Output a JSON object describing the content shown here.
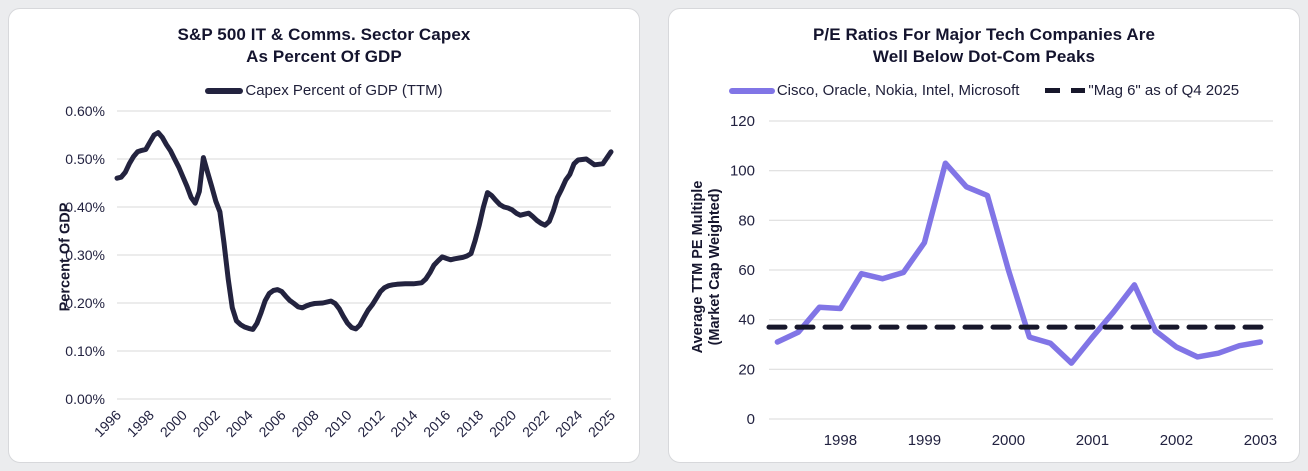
{
  "page": {
    "background": "#ebecee",
    "card_background": "#ffffff",
    "gridline_color": "#d9d9d9"
  },
  "chart_data": [
    {
      "type": "line",
      "title_line1": "S&P 500 IT & Comms. Sector Capex",
      "title_line2": "As Percent Of GDP",
      "ylabel": "Percent Of GDP",
      "legend_position": "top",
      "grid": "horizontal",
      "xlim": [
        1996,
        2025
      ],
      "ylim": [
        0,
        0.6
      ],
      "xtick_labels": [
        "1996",
        "1998",
        "2000",
        "2002",
        "2004",
        "2006",
        "2008",
        "2010",
        "2012",
        "2014",
        "2016",
        "2018",
        "2020",
        "2022",
        "2024",
        "2025"
      ],
      "xtick_years": [
        1996,
        1998,
        2000,
        2002,
        2004,
        2006,
        2008,
        2010,
        2012,
        2014,
        2016,
        2018,
        2020,
        2022,
        2024,
        2025
      ],
      "ytick_labels": [
        "0.00%",
        "0.10%",
        "0.20%",
        "0.30%",
        "0.40%",
        "0.50%",
        "0.60%"
      ],
      "ytick_values": [
        0,
        0.1,
        0.2,
        0.3,
        0.4,
        0.5,
        0.6
      ],
      "series": [
        {
          "name": "Capex Percent of GDP (TTM)",
          "color": "#23233f",
          "dash": false,
          "points": [
            [
              1996.0,
              0.46
            ],
            [
              1996.25,
              0.462
            ],
            [
              1996.5,
              0.472
            ],
            [
              1996.75,
              0.49
            ],
            [
              1997.0,
              0.505
            ],
            [
              1997.25,
              0.515
            ],
            [
              1997.5,
              0.518
            ],
            [
              1997.75,
              0.52
            ],
            [
              1998.0,
              0.535
            ],
            [
              1998.25,
              0.55
            ],
            [
              1998.5,
              0.555
            ],
            [
              1998.75,
              0.545
            ],
            [
              1999.0,
              0.53
            ],
            [
              1999.25,
              0.517
            ],
            [
              1999.5,
              0.5
            ],
            [
              1999.75,
              0.483
            ],
            [
              2000.0,
              0.463
            ],
            [
              2000.25,
              0.443
            ],
            [
              2000.5,
              0.42
            ],
            [
              2000.75,
              0.408
            ],
            [
              2001.0,
              0.432
            ],
            [
              2001.25,
              0.503
            ],
            [
              2001.5,
              0.472
            ],
            [
              2001.75,
              0.443
            ],
            [
              2002.0,
              0.412
            ],
            [
              2002.25,
              0.39
            ],
            [
              2002.5,
              0.325
            ],
            [
              2002.75,
              0.25
            ],
            [
              2003.0,
              0.19
            ],
            [
              2003.25,
              0.163
            ],
            [
              2003.5,
              0.155
            ],
            [
              2003.75,
              0.15
            ],
            [
              2004.0,
              0.147
            ],
            [
              2004.25,
              0.145
            ],
            [
              2004.5,
              0.158
            ],
            [
              2004.75,
              0.18
            ],
            [
              2005.0,
              0.205
            ],
            [
              2005.25,
              0.22
            ],
            [
              2005.5,
              0.226
            ],
            [
              2005.75,
              0.228
            ],
            [
              2006.0,
              0.224
            ],
            [
              2006.25,
              0.214
            ],
            [
              2006.5,
              0.205
            ],
            [
              2006.75,
              0.199
            ],
            [
              2007.0,
              0.192
            ],
            [
              2007.25,
              0.19
            ],
            [
              2007.5,
              0.194
            ],
            [
              2007.75,
              0.197
            ],
            [
              2008.0,
              0.199
            ],
            [
              2008.5,
              0.2
            ],
            [
              2009.0,
              0.204
            ],
            [
              2009.25,
              0.199
            ],
            [
              2009.5,
              0.188
            ],
            [
              2009.75,
              0.172
            ],
            [
              2010.0,
              0.158
            ],
            [
              2010.25,
              0.149
            ],
            [
              2010.5,
              0.146
            ],
            [
              2010.75,
              0.154
            ],
            [
              2011.0,
              0.17
            ],
            [
              2011.25,
              0.185
            ],
            [
              2011.5,
              0.196
            ],
            [
              2011.75,
              0.21
            ],
            [
              2012.0,
              0.224
            ],
            [
              2012.25,
              0.232
            ],
            [
              2012.5,
              0.236
            ],
            [
              2012.75,
              0.238
            ],
            [
              2013.0,
              0.239
            ],
            [
              2013.5,
              0.24
            ],
            [
              2014.0,
              0.24
            ],
            [
              2014.5,
              0.242
            ],
            [
              2014.75,
              0.25
            ],
            [
              2015.0,
              0.263
            ],
            [
              2015.25,
              0.279
            ],
            [
              2015.5,
              0.288
            ],
            [
              2015.75,
              0.296
            ],
            [
              2016.0,
              0.293
            ],
            [
              2016.25,
              0.29
            ],
            [
              2016.5,
              0.292
            ],
            [
              2017.0,
              0.295
            ],
            [
              2017.25,
              0.298
            ],
            [
              2017.5,
              0.303
            ],
            [
              2017.75,
              0.33
            ],
            [
              2018.0,
              0.363
            ],
            [
              2018.25,
              0.4
            ],
            [
              2018.5,
              0.43
            ],
            [
              2018.75,
              0.424
            ],
            [
              2019.0,
              0.414
            ],
            [
              2019.25,
              0.405
            ],
            [
              2019.5,
              0.4
            ],
            [
              2019.75,
              0.398
            ],
            [
              2020.0,
              0.394
            ],
            [
              2020.25,
              0.387
            ],
            [
              2020.5,
              0.383
            ],
            [
              2020.75,
              0.385
            ],
            [
              2021.0,
              0.387
            ],
            [
              2021.25,
              0.38
            ],
            [
              2021.5,
              0.372
            ],
            [
              2021.75,
              0.366
            ],
            [
              2022.0,
              0.362
            ],
            [
              2022.25,
              0.37
            ],
            [
              2022.5,
              0.392
            ],
            [
              2022.75,
              0.42
            ],
            [
              2023.0,
              0.437
            ],
            [
              2023.25,
              0.456
            ],
            [
              2023.5,
              0.468
            ],
            [
              2023.75,
              0.49
            ],
            [
              2024.0,
              0.498
            ],
            [
              2024.25,
              0.5
            ],
            [
              2024.5,
              0.488
            ],
            [
              2024.75,
              0.49
            ],
            [
              2025.0,
              0.515
            ]
          ]
        }
      ]
    },
    {
      "type": "line",
      "title_line1": "P/E Ratios For Major Tech Companies Are",
      "title_line2": "Well Below Dot-Com Peaks",
      "ylabel_line1": "Average TTM PE Multiple",
      "ylabel_line2": "(Market Cap Weighted)",
      "legend_position": "top",
      "grid": "horizontal",
      "xlim": [
        1997.15,
        2003.15
      ],
      "ylim": [
        0,
        120
      ],
      "xtick_labels": [
        "1998",
        "1999",
        "2000",
        "2001",
        "2002",
        "2003"
      ],
      "xtick_years": [
        1998,
        1999,
        2000,
        2001,
        2002,
        2003
      ],
      "ytick_labels": [
        "0",
        "20",
        "40",
        "60",
        "80",
        "100",
        "120"
      ],
      "ytick_values": [
        0,
        20,
        40,
        60,
        80,
        100,
        120
      ],
      "series": [
        {
          "name": "Cisco, Oracle, Nokia, Intel, Microsoft",
          "color": "#8175e6",
          "dash": false,
          "points": [
            [
              1997.25,
              31
            ],
            [
              1997.5,
              35
            ],
            [
              1997.75,
              45
            ],
            [
              1998.0,
              44.5
            ],
            [
              1998.25,
              58.5
            ],
            [
              1998.5,
              56.5
            ],
            [
              1998.75,
              59
            ],
            [
              1999.0,
              71
            ],
            [
              1999.25,
              103
            ],
            [
              1999.5,
              93.5
            ],
            [
              1999.75,
              90
            ],
            [
              2000.0,
              60
            ],
            [
              2000.25,
              33
            ],
            [
              2000.5,
              30.5
            ],
            [
              2000.75,
              22.5
            ],
            [
              2001.0,
              33
            ],
            [
              2001.25,
              43
            ],
            [
              2001.5,
              54
            ],
            [
              2001.75,
              35.5
            ],
            [
              2002.0,
              29
            ],
            [
              2002.25,
              25
            ],
            [
              2002.5,
              26.5
            ],
            [
              2002.75,
              29.5
            ],
            [
              2003.0,
              31
            ]
          ]
        },
        {
          "name": "\"Mag 6\" as of Q4 2025",
          "color": "#17172b",
          "dash": true,
          "points": [
            [
              1997.15,
              37
            ],
            [
              2003.15,
              37
            ]
          ]
        }
      ]
    }
  ]
}
